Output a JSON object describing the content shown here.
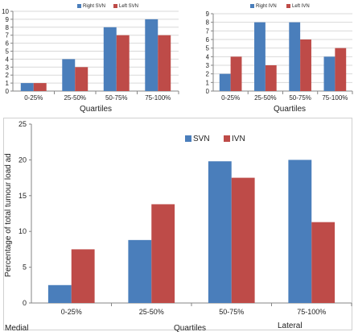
{
  "colors": {
    "blue": "#4a7ebb",
    "red": "#be4b48",
    "grid": "#d9d9d9",
    "axis": "#868686"
  },
  "chart_data": [
    {
      "id": "a",
      "type": "bar",
      "categories": [
        "0-25%",
        "25-50%",
        "50-75%",
        "75-100%"
      ],
      "series": [
        {
          "name": "Right SVN",
          "values": [
            1,
            4,
            8,
            9
          ]
        },
        {
          "name": "Left SVN",
          "values": [
            1,
            3,
            7,
            7
          ]
        }
      ],
      "xlabel": "Quartiles",
      "ylabel": "",
      "ylim": [
        0,
        10
      ],
      "yticks": [
        0,
        1,
        2,
        3,
        4,
        5,
        6,
        7,
        8,
        9,
        10
      ],
      "grid": true,
      "legend": "top-right"
    },
    {
      "id": "b",
      "type": "bar",
      "categories": [
        "0-25%",
        "25-50%",
        "50-75%",
        "75-100%"
      ],
      "series": [
        {
          "name": "Right IVN",
          "values": [
            2,
            8,
            8,
            4
          ]
        },
        {
          "name": "Left IVN",
          "values": [
            4,
            3,
            6,
            5
          ]
        }
      ],
      "xlabel": "Quartiles",
      "ylabel": "",
      "ylim": [
        0,
        9
      ],
      "yticks": [
        0,
        1,
        2,
        3,
        4,
        5,
        6,
        7,
        8,
        9
      ],
      "grid": true,
      "legend": "top-right"
    },
    {
      "id": "c",
      "type": "bar",
      "categories": [
        "0-25%",
        "25-50%",
        "50-75%",
        "75-100%"
      ],
      "series": [
        {
          "name": "SVN",
          "values": [
            2.5,
            8.8,
            19.8,
            20.0
          ]
        },
        {
          "name": "IVN",
          "values": [
            7.5,
            13.8,
            17.5,
            11.3
          ]
        }
      ],
      "xlabel": "Quartiles",
      "ylabel": "Percentage of total tumour load ad",
      "ylim": [
        0,
        25
      ],
      "yticks": [
        0,
        5,
        10,
        15,
        20,
        25
      ],
      "grid": false,
      "legend": "top-center",
      "corner_left": "Medial",
      "corner_right": "Lateral"
    }
  ]
}
